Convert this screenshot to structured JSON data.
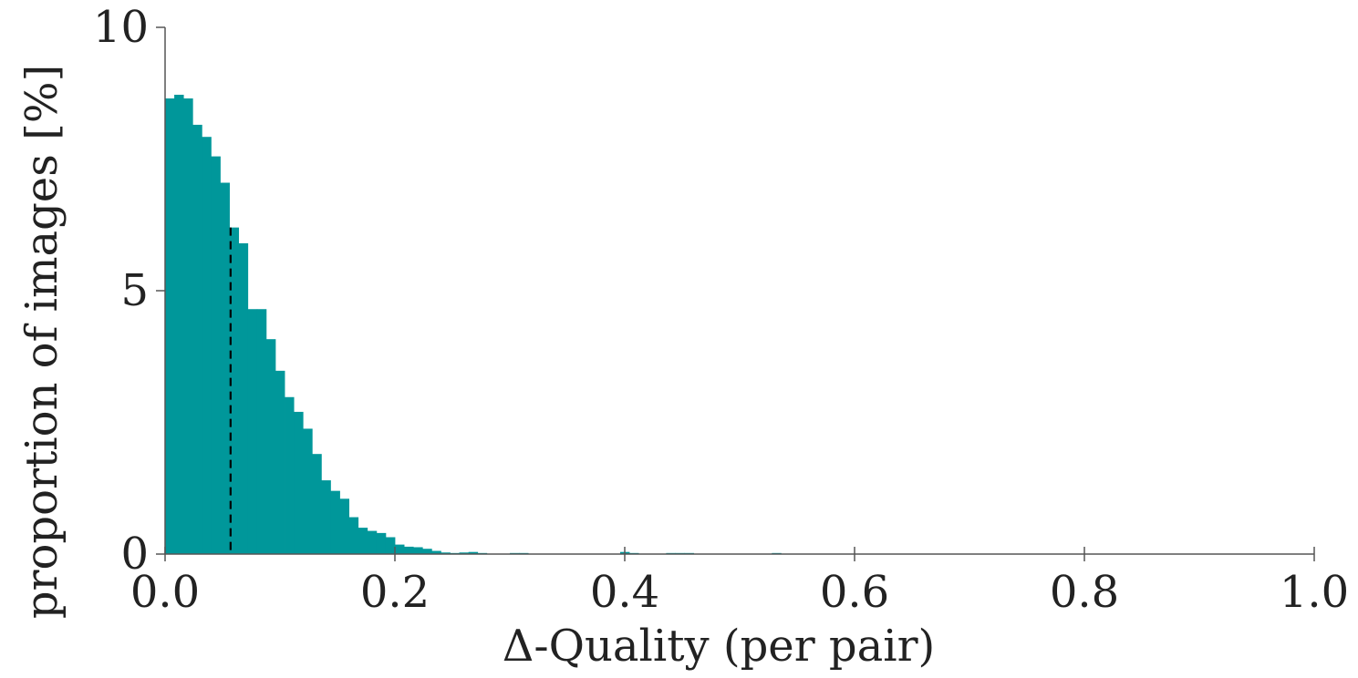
{
  "chart_data": {
    "type": "bar",
    "subtype": "histogram",
    "title": "",
    "xlabel": "Δ-Quality (per pair)",
    "ylabel": "proportion of images [%]",
    "xlim": [
      0.0,
      1.0
    ],
    "ylim": [
      0,
      10
    ],
    "x_ticks": [
      0.0,
      0.2,
      0.4,
      0.6,
      0.8,
      1.0
    ],
    "x_tick_labels": [
      "0.0",
      "0.2",
      "0.4",
      "0.6",
      "0.8",
      "1.0"
    ],
    "y_ticks": [
      0,
      5,
      10
    ],
    "y_tick_labels": [
      "0",
      "5",
      "10"
    ],
    "grid": false,
    "legend": "none",
    "bar_color": "#00979A",
    "marker_color": "#000000",
    "bin_width": 0.008,
    "bin_starts": [
      0.0,
      0.008,
      0.016,
      0.024,
      0.032,
      0.04,
      0.048,
      0.056,
      0.064,
      0.072,
      0.08,
      0.088,
      0.096,
      0.104,
      0.112,
      0.12,
      0.128,
      0.136,
      0.144,
      0.152,
      0.16,
      0.168,
      0.176,
      0.184,
      0.192,
      0.2,
      0.208,
      0.216,
      0.224,
      0.232,
      0.24,
      0.248,
      0.256,
      0.264,
      0.272,
      0.3,
      0.308,
      0.396,
      0.404,
      0.436,
      0.444,
      0.452,
      0.528
    ],
    "values": [
      8.65,
      8.72,
      8.65,
      8.15,
      7.92,
      7.55,
      7.05,
      6.2,
      5.9,
      4.65,
      4.65,
      4.08,
      3.48,
      2.98,
      2.7,
      2.38,
      1.9,
      1.4,
      1.2,
      1.05,
      0.7,
      0.5,
      0.44,
      0.4,
      0.32,
      0.18,
      0.14,
      0.13,
      0.1,
      0.06,
      0.03,
      0.02,
      0.03,
      0.04,
      0.02,
      0.02,
      0.02,
      0.04,
      0.02,
      0.02,
      0.02,
      0.02,
      0.02
    ],
    "mean_marker": {
      "x": 0.057,
      "y": 6.2,
      "style": "dashed"
    }
  }
}
